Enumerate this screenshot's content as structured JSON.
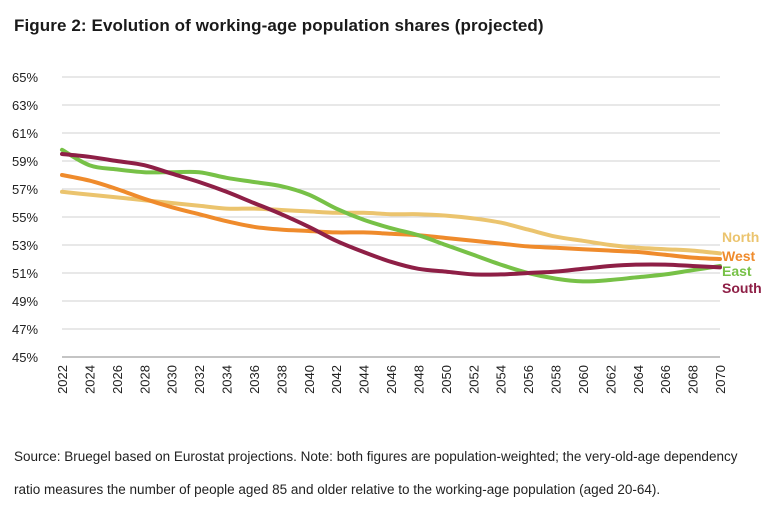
{
  "title": "Figure 2: Evolution of working-age population shares (projected)",
  "source": "Source: Bruegel based on Eurostat projections. Note: both figures are population-weighted; the very-old-age dependency ratio measures the number of people aged 85 and older relative to the working-age population (aged 20-64).",
  "chart_data": {
    "type": "line",
    "title": "Figure 2: Evolution of working-age population shares (projected)",
    "xlabel": "",
    "ylabel": "",
    "ylim": [
      45,
      65
    ],
    "yticks": [
      45,
      47,
      49,
      51,
      53,
      55,
      57,
      59,
      61,
      63,
      65
    ],
    "ytick_labels": [
      "45%",
      "47%",
      "49%",
      "51%",
      "53%",
      "55%",
      "57%",
      "59%",
      "61%",
      "63%",
      "65%"
    ],
    "x": [
      2022,
      2024,
      2026,
      2028,
      2030,
      2032,
      2034,
      2036,
      2038,
      2040,
      2042,
      2044,
      2046,
      2048,
      2050,
      2052,
      2054,
      2056,
      2058,
      2060,
      2062,
      2064,
      2066,
      2068,
      2070
    ],
    "xtick_labels": [
      "2022",
      "2024",
      "2026",
      "2028",
      "2030",
      "2032",
      "2034",
      "2036",
      "2038",
      "2040",
      "2042",
      "2044",
      "2046",
      "2048",
      "2050",
      "2052",
      "2054",
      "2056",
      "2058",
      "2060",
      "2062",
      "2064",
      "2066",
      "2068",
      "2070"
    ],
    "grid": true,
    "legend": "right-end labels",
    "series": [
      {
        "name": "North",
        "color": "#EBC46E",
        "values": [
          56.8,
          56.6,
          56.4,
          56.2,
          56.0,
          55.8,
          55.6,
          55.6,
          55.5,
          55.4,
          55.3,
          55.3,
          55.2,
          55.2,
          55.1,
          54.9,
          54.6,
          54.1,
          53.6,
          53.3,
          53.0,
          52.8,
          52.7,
          52.6,
          52.4
        ]
      },
      {
        "name": "West",
        "color": "#EF8B2C",
        "values": [
          58.0,
          57.6,
          57.0,
          56.3,
          55.7,
          55.2,
          54.7,
          54.3,
          54.1,
          54.0,
          53.9,
          53.9,
          53.8,
          53.7,
          53.5,
          53.3,
          53.1,
          52.9,
          52.8,
          52.7,
          52.6,
          52.5,
          52.3,
          52.1,
          52.0
        ]
      },
      {
        "name": "East",
        "color": "#77C147",
        "values": [
          59.8,
          58.7,
          58.4,
          58.2,
          58.2,
          58.2,
          57.8,
          57.5,
          57.2,
          56.6,
          55.6,
          54.8,
          54.2,
          53.7,
          53.0,
          52.3,
          51.6,
          51.0,
          50.6,
          50.4,
          50.5,
          50.7,
          50.9,
          51.2,
          51.5
        ]
      },
      {
        "name": "South",
        "color": "#8E1F46",
        "values": [
          59.5,
          59.3,
          59.0,
          58.7,
          58.1,
          57.5,
          56.8,
          56.0,
          55.2,
          54.3,
          53.3,
          52.5,
          51.8,
          51.3,
          51.1,
          50.9,
          50.9,
          51.0,
          51.1,
          51.3,
          51.5,
          51.6,
          51.6,
          51.5,
          51.4
        ]
      }
    ]
  }
}
